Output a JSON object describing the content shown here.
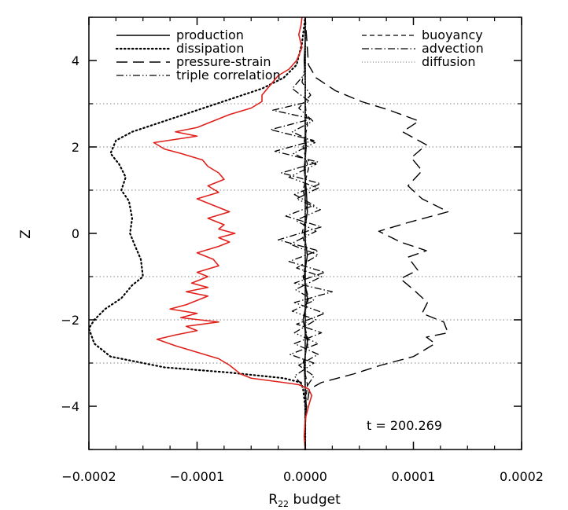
{
  "chart_data": {
    "type": "line",
    "xlabel_main": "R",
    "xlabel_sub": "22",
    "xlabel_rest": " budget",
    "ylabel": "Z",
    "xlim": [
      -0.0002,
      0.0002
    ],
    "ylim": [
      -5,
      5
    ],
    "xticks": [
      -0.0002,
      -0.0001,
      0.0,
      0.0001,
      0.0002
    ],
    "xtick_labels": [
      "−0.0002",
      "−0.0001",
      "0.0000",
      "0.0001",
      "0.0002"
    ],
    "yticks": [
      -4,
      -2,
      0,
      2,
      4
    ],
    "ytick_labels": [
      "−4",
      "−2",
      "0",
      "2",
      "4"
    ],
    "hlines": [
      -3,
      -2,
      -1,
      1,
      2,
      3
    ],
    "annotation": "t  =  200.269",
    "legend_placement": "top",
    "colors": {
      "dissipation_line": "#000000",
      "advection_line": "#000000",
      "red_curve": "#e0201b",
      "grid": "#9a9a9a"
    },
    "series": [
      {
        "name": "production",
        "style": "solid",
        "points": [
          [
            0.0,
            -5
          ],
          [
            0.0,
            -4.5
          ],
          [
            1e-06,
            -4.0
          ],
          [
            0.0,
            -3.6
          ],
          [
            -1e-06,
            -3.0
          ],
          [
            2e-06,
            -2.5
          ],
          [
            -2e-06,
            -2.0
          ],
          [
            2e-06,
            -1.5
          ],
          [
            -1e-06,
            -1.0
          ],
          [
            2e-06,
            -0.5
          ],
          [
            -1e-06,
            0.0
          ],
          [
            2e-06,
            0.5
          ],
          [
            1e-06,
            1.0
          ],
          [
            -1e-06,
            1.5
          ],
          [
            1e-06,
            2.0
          ],
          [
            0.0,
            2.5
          ],
          [
            0.0,
            3.0
          ],
          [
            0.0,
            3.5
          ],
          [
            -1e-06,
            4.0
          ],
          [
            0.0,
            4.5
          ],
          [
            0.0,
            5.0
          ]
        ]
      },
      {
        "name": "dissipation",
        "style": "dotted",
        "points": [
          [
            0.0,
            -5
          ],
          [
            0.0,
            -4.0
          ],
          [
            -2e-06,
            -3.6
          ],
          [
            -4e-06,
            -3.45
          ],
          [
            -2e-05,
            -3.35
          ],
          [
            -7e-05,
            -3.22
          ],
          [
            -0.00013,
            -3.1
          ],
          [
            -0.00018,
            -2.85
          ],
          [
            -0.000195,
            -2.55
          ],
          [
            -0.0002,
            -2.2
          ],
          [
            -0.000195,
            -2.0
          ],
          [
            -0.000185,
            -1.75
          ],
          [
            -0.00017,
            -1.5
          ],
          [
            -0.00016,
            -1.2
          ],
          [
            -0.00015,
            -1.0
          ],
          [
            -0.000152,
            -0.6
          ],
          [
            -0.000158,
            -0.25
          ],
          [
            -0.000162,
            0.0
          ],
          [
            -0.00016,
            0.35
          ],
          [
            -0.000163,
            0.75
          ],
          [
            -0.00017,
            1.0
          ],
          [
            -0.000166,
            1.3
          ],
          [
            -0.000172,
            1.6
          ],
          [
            -0.00018,
            1.85
          ],
          [
            -0.000175,
            2.15
          ],
          [
            -0.00016,
            2.35
          ],
          [
            -0.00013,
            2.6
          ],
          [
            -0.0001,
            2.85
          ],
          [
            -7e-05,
            3.1
          ],
          [
            -4e-05,
            3.35
          ],
          [
            -2e-05,
            3.6
          ],
          [
            -8e-06,
            3.9
          ],
          [
            -3e-06,
            4.4
          ],
          [
            0.0,
            5.0
          ]
        ]
      },
      {
        "name": "pressure-strain",
        "style": "long-dash",
        "points": [
          [
            0.0,
            -5
          ],
          [
            0.0,
            -4.2
          ],
          [
            4e-06,
            -3.6
          ],
          [
            1.5e-05,
            -3.45
          ],
          [
            4.5e-05,
            -3.25
          ],
          [
            7e-05,
            -3.05
          ],
          [
            0.0001,
            -2.85
          ],
          [
            0.00012,
            -2.55
          ],
          [
            0.000112,
            -2.4
          ],
          [
            0.000132,
            -2.3
          ],
          [
            0.000128,
            -2.05
          ],
          [
            0.000108,
            -1.85
          ],
          [
            0.000113,
            -1.6
          ],
          [
            0.0001,
            -1.3
          ],
          [
            8.8e-05,
            -1.05
          ],
          [
            0.000104,
            -0.85
          ],
          [
            9.5e-05,
            -0.55
          ],
          [
            0.000112,
            -0.4
          ],
          [
            8.8e-05,
            -0.2
          ],
          [
            6.8e-05,
            0.05
          ],
          [
            9.5e-05,
            0.25
          ],
          [
            0.000132,
            0.5
          ],
          [
            0.000108,
            0.8
          ],
          [
            9.5e-05,
            1.1
          ],
          [
            0.000108,
            1.45
          ],
          [
            9.8e-05,
            1.75
          ],
          [
            0.000112,
            2.05
          ],
          [
            9e-05,
            2.35
          ],
          [
            0.000105,
            2.6
          ],
          [
            7.8e-05,
            2.85
          ],
          [
            5.2e-05,
            3.05
          ],
          [
            2.8e-05,
            3.3
          ],
          [
            1e-05,
            3.6
          ],
          [
            3e-06,
            3.9
          ],
          [
            0.0,
            5.0
          ]
        ]
      },
      {
        "name": "triple correlation",
        "style": "dash-dot-dot",
        "points": [
          [
            0.0,
            -5
          ],
          [
            0.0,
            -3.6
          ],
          [
            -1e-05,
            -3.3
          ],
          [
            8e-06,
            -3.0
          ],
          [
            -1.4e-05,
            -2.8
          ],
          [
            1.2e-05,
            -2.55
          ],
          [
            -1e-05,
            -2.3
          ],
          [
            1e-05,
            -2.0
          ],
          [
            -1.2e-05,
            -1.8
          ],
          [
            8e-06,
            -1.55
          ],
          [
            -9e-06,
            -1.3
          ],
          [
            1.5e-05,
            -1.0
          ],
          [
            -8e-06,
            -0.8
          ],
          [
            1.2e-05,
            -0.5
          ],
          [
            -1.4e-05,
            -0.25
          ],
          [
            1e-05,
            0.05
          ],
          [
            -9e-06,
            0.3
          ],
          [
            1.4e-05,
            0.55
          ],
          [
            -8e-06,
            0.8
          ],
          [
            1.2e-05,
            1.05
          ],
          [
            -1.5e-05,
            1.3
          ],
          [
            1e-05,
            1.6
          ],
          [
            -1.1e-05,
            1.85
          ],
          [
            9e-06,
            2.1
          ],
          [
            -1.2e-05,
            2.35
          ],
          [
            7e-06,
            2.6
          ],
          [
            -6e-06,
            2.9
          ],
          [
            5e-06,
            3.2
          ],
          [
            -3e-06,
            3.5
          ],
          [
            0.0,
            3.9
          ],
          [
            0.0,
            5.0
          ]
        ]
      },
      {
        "name": "buoyancy",
        "style": "dash",
        "points": [
          [
            0.0,
            -5
          ],
          [
            0.0,
            -4.0
          ],
          [
            2e-06,
            -3.5
          ],
          [
            -2e-06,
            -3.0
          ],
          [
            3e-06,
            -2.5
          ],
          [
            -2e-06,
            -2.0
          ],
          [
            3e-06,
            -1.5
          ],
          [
            -2e-06,
            -1.0
          ],
          [
            2e-06,
            -0.5
          ],
          [
            -3e-06,
            0.0
          ],
          [
            2e-06,
            0.5
          ],
          [
            -2e-06,
            1.0
          ],
          [
            3e-06,
            1.5
          ],
          [
            -2e-06,
            2.0
          ],
          [
            2e-06,
            2.5
          ],
          [
            0.0,
            3.0
          ],
          [
            0.0,
            5.0
          ]
        ]
      },
      {
        "name": "advection",
        "style": "dash-dot",
        "points": [
          [
            0.0,
            -5
          ],
          [
            0.0,
            -3.6
          ],
          [
            8e-06,
            -3.3
          ],
          [
            -6e-06,
            -3.05
          ],
          [
            1.2e-05,
            -2.8
          ],
          [
            -1e-05,
            -2.55
          ],
          [
            1.5e-05,
            -2.3
          ],
          [
            -8e-06,
            -2.1
          ],
          [
            1.8e-05,
            -1.85
          ],
          [
            -1e-05,
            -1.6
          ],
          [
            2.5e-05,
            -1.35
          ],
          [
            -1e-05,
            -1.15
          ],
          [
            1.8e-05,
            -0.9
          ],
          [
            -1.5e-05,
            -0.65
          ],
          [
            1.2e-05,
            -0.4
          ],
          [
            -2.5e-05,
            -0.15
          ],
          [
            1.5e-05,
            0.15
          ],
          [
            -1.8e-05,
            0.4
          ],
          [
            8e-06,
            0.65
          ],
          [
            -1e-05,
            0.9
          ],
          [
            1.4e-05,
            1.15
          ],
          [
            -2.2e-05,
            1.4
          ],
          [
            1.2e-05,
            1.65
          ],
          [
            -2.8e-05,
            1.9
          ],
          [
            8e-06,
            2.15
          ],
          [
            -3.2e-05,
            2.4
          ],
          [
            6e-06,
            2.65
          ],
          [
            -3e-05,
            2.85
          ],
          [
            4e-06,
            3.05
          ],
          [
            -1.2e-05,
            3.35
          ],
          [
            0.0,
            3.7
          ],
          [
            0.0,
            5.0
          ]
        ]
      },
      {
        "name": "diffusion",
        "style": "fine-dotted",
        "points": [
          [
            0.0,
            -5
          ],
          [
            0.0,
            -3.0
          ],
          [
            1e-06,
            -2.0
          ],
          [
            -1e-06,
            -1.0
          ],
          [
            1e-06,
            0.0
          ],
          [
            -1e-06,
            1.0
          ],
          [
            1e-06,
            2.0
          ],
          [
            0.0,
            3.0
          ],
          [
            0.0,
            5.0
          ]
        ]
      },
      {
        "style": "solid-red",
        "points": [
          [
            0.0,
            -5
          ],
          [
            -1e-06,
            -4.7
          ],
          [
            0.0,
            -4.3
          ],
          [
            3e-06,
            -4.0
          ],
          [
            6e-06,
            -3.75
          ],
          [
            3e-06,
            -3.6
          ],
          [
            -6e-06,
            -3.5
          ],
          [
            -2e-05,
            -3.45
          ],
          [
            -5e-05,
            -3.35
          ],
          [
            -6e-05,
            -3.25
          ],
          [
            -7e-05,
            -3.05
          ],
          [
            -8e-05,
            -2.9
          ],
          [
            -0.0001,
            -2.75
          ],
          [
            -0.00012,
            -2.6
          ],
          [
            -0.000137,
            -2.45
          ],
          [
            -0.00012,
            -2.35
          ],
          [
            -0.0001,
            -2.25
          ],
          [
            -0.00011,
            -2.15
          ],
          [
            -8e-05,
            -2.05
          ],
          [
            -0.000115,
            -1.95
          ],
          [
            -0.0001,
            -1.85
          ],
          [
            -0.000125,
            -1.75
          ],
          [
            -0.00011,
            -1.65
          ],
          [
            -0.0001,
            -1.55
          ],
          [
            -9e-05,
            -1.45
          ],
          [
            -0.00011,
            -1.35
          ],
          [
            -9e-05,
            -1.25
          ],
          [
            -0.000105,
            -1.15
          ],
          [
            -9e-05,
            -1.0
          ],
          [
            -0.0001,
            -0.9
          ],
          [
            -8e-05,
            -0.75
          ],
          [
            -8.5e-05,
            -0.6
          ],
          [
            -0.0001,
            -0.45
          ],
          [
            -8e-05,
            -0.3
          ],
          [
            -7e-05,
            -0.2
          ],
          [
            -8e-05,
            -0.1
          ],
          [
            -6.5e-05,
            0.0
          ],
          [
            -8e-05,
            0.1
          ],
          [
            -7.5e-05,
            0.2
          ],
          [
            -9e-05,
            0.35
          ],
          [
            -7e-05,
            0.5
          ],
          [
            -8.5e-05,
            0.65
          ],
          [
            -0.0001,
            0.8
          ],
          [
            -8e-05,
            0.95
          ],
          [
            -9e-05,
            1.1
          ],
          [
            -7.5e-05,
            1.25
          ],
          [
            -8e-05,
            1.4
          ],
          [
            -9e-05,
            1.55
          ],
          [
            -9.5e-05,
            1.7
          ],
          [
            -0.000115,
            1.85
          ],
          [
            -0.00013,
            1.95
          ],
          [
            -0.00014,
            2.1
          ],
          [
            -0.0001,
            2.25
          ],
          [
            -0.00012,
            2.35
          ],
          [
            -0.0001,
            2.45
          ],
          [
            -9e-05,
            2.55
          ],
          [
            -8e-05,
            2.65
          ],
          [
            -7e-05,
            2.75
          ],
          [
            -5e-05,
            2.9
          ],
          [
            -4e-05,
            3.05
          ],
          [
            -4e-05,
            3.2
          ],
          [
            -3.5e-05,
            3.35
          ],
          [
            -3e-05,
            3.5
          ],
          [
            -2.5e-05,
            3.65
          ],
          [
            -1.5e-05,
            3.8
          ],
          [
            -8e-06,
            4.0
          ],
          [
            -3e-06,
            4.3
          ],
          [
            -6e-06,
            4.6
          ],
          [
            -4e-06,
            4.8
          ],
          [
            -3e-06,
            5.0
          ]
        ]
      }
    ]
  }
}
